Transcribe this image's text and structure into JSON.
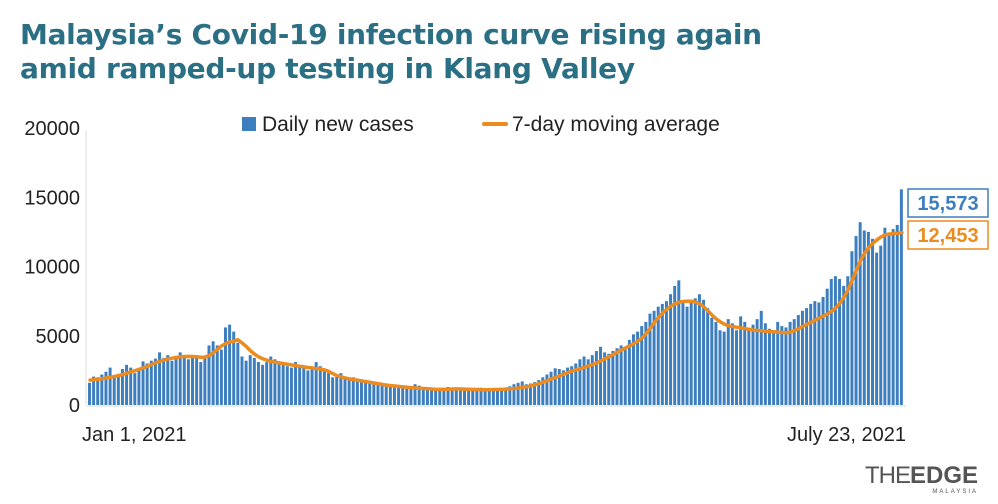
{
  "title": {
    "line1": "Malaysia’s Covid-19 infection curve rising again",
    "line2": "amid ramped-up testing in Klang Valley"
  },
  "logo": {
    "part1": "THE",
    "part2": "EDGE",
    "sub": "MALAYSIA"
  },
  "colors": {
    "bar": "#3d7ebf",
    "line": "#ec8b1f",
    "title": "#2a6f83"
  },
  "chart_data": {
    "type": "bar",
    "title": "Malaysia’s Covid-19 infection curve rising again amid ramped-up testing in Klang Valley",
    "xlabel": "",
    "ylabel": "",
    "ylim": [
      0,
      20000
    ],
    "yticks": [
      0,
      5000,
      10000,
      15000,
      20000
    ],
    "x_tick_labels": [
      "Jan 1, 2021",
      "July 23, 2021"
    ],
    "legend": {
      "placement": "top-center",
      "entries": [
        "Daily new cases",
        "7-day moving average"
      ]
    },
    "end_labels": {
      "bar": "15,573",
      "line": "12,453"
    },
    "series": [
      {
        "name": "Daily new cases",
        "type": "bar",
        "values": [
          1600,
          2050,
          2000,
          2200,
          2400,
          2700,
          2100,
          2250,
          2600,
          2900,
          2700,
          2300,
          2650,
          3150,
          3000,
          3200,
          3350,
          3800,
          3400,
          3600,
          3200,
          3500,
          3800,
          3400,
          3300,
          3500,
          3600,
          3100,
          3500,
          4300,
          4600,
          4300,
          4000,
          5600,
          5800,
          5300,
          4500,
          3500,
          3200,
          3600,
          3400,
          3100,
          2900,
          3100,
          3500,
          3300,
          3100,
          2900,
          2800,
          2700,
          3100,
          2900,
          2700,
          2500,
          2700,
          3100,
          2800,
          2600,
          2300,
          2000,
          2200,
          2300,
          2000,
          1800,
          2000,
          1900,
          1850,
          1700,
          1700,
          1550,
          1600,
          1500,
          1450,
          1400,
          1400,
          1350,
          1300,
          1250,
          1300,
          1500,
          1400,
          1300,
          1200,
          1150,
          1100,
          1150,
          1200,
          1300,
          1200,
          1150,
          1100,
          1050,
          1100,
          1150,
          1200,
          1250,
          1200,
          1150,
          1100,
          1050,
          1100,
          1200,
          1350,
          1500,
          1600,
          1700,
          1500,
          1550,
          1650,
          1800,
          2000,
          2200,
          2400,
          2650,
          2600,
          2500,
          2700,
          2800,
          3000,
          3300,
          3500,
          3300,
          3600,
          3900,
          4200,
          3800,
          3700,
          3900,
          4100,
          4300,
          4000,
          4700,
          5100,
          5300,
          5700,
          6000,
          6600,
          6800,
          7100,
          7300,
          7500,
          8000,
          8600,
          9000,
          7400,
          7100,
          7500,
          7700,
          8000,
          7600,
          7000,
          6300,
          6000,
          5400,
          5300,
          6200,
          5900,
          5400,
          6400,
          6000,
          5400,
          5800,
          6200,
          6800,
          5900,
          5500,
          5200,
          6000,
          5700,
          5600,
          6000,
          6200,
          6500,
          6800,
          7000,
          7300,
          7500,
          7400,
          7800,
          8400,
          9100,
          9300,
          9100,
          8600,
          9300,
          11100,
          12200,
          13200,
          12600,
          12500,
          12000,
          11000,
          11500,
          12800,
          12400,
          12700,
          13000,
          15573
        ]
      },
      {
        "name": "7-day moving average",
        "type": "line",
        "values": [
          1800,
          1820,
          1860,
          1900,
          1950,
          2000,
          2060,
          2120,
          2200,
          2300,
          2400,
          2480,
          2580,
          2680,
          2800,
          2920,
          3040,
          3150,
          3250,
          3330,
          3380,
          3430,
          3480,
          3500,
          3510,
          3500,
          3480,
          3450,
          3460,
          3560,
          3760,
          4000,
          4250,
          4420,
          4550,
          4600,
          4720,
          4500,
          4250,
          3950,
          3700,
          3500,
          3350,
          3250,
          3150,
          3100,
          3050,
          3000,
          2950,
          2900,
          2850,
          2800,
          2760,
          2720,
          2680,
          2640,
          2600,
          2550,
          2450,
          2300,
          2150,
          2050,
          1970,
          1900,
          1850,
          1800,
          1750,
          1700,
          1650,
          1600,
          1550,
          1500,
          1450,
          1410,
          1380,
          1350,
          1320,
          1290,
          1260,
          1240,
          1220,
          1200,
          1180,
          1160,
          1140,
          1130,
          1130,
          1140,
          1150,
          1160,
          1160,
          1150,
          1140,
          1130,
          1120,
          1110,
          1100,
          1100,
          1110,
          1120,
          1130,
          1140,
          1160,
          1180,
          1210,
          1250,
          1300,
          1350,
          1420,
          1500,
          1600,
          1700,
          1810,
          1930,
          2050,
          2170,
          2280,
          2390,
          2490,
          2580,
          2670,
          2760,
          2860,
          2970,
          3100,
          3250,
          3400,
          3560,
          3720,
          3880,
          4030,
          4180,
          4330,
          4500,
          4700,
          4950,
          5300,
          5700,
          6100,
          6450,
          6750,
          7000,
          7200,
          7350,
          7450,
          7480,
          7500,
          7480,
          7400,
          7250,
          7000,
          6700,
          6400,
          6150,
          5950,
          5800,
          5700,
          5650,
          5600,
          5550,
          5500,
          5450,
          5400,
          5380,
          5350,
          5320,
          5300,
          5280,
          5250,
          5230,
          5220,
          5280,
          5400,
          5550,
          5700,
          5850,
          6000,
          6150,
          6300,
          6450,
          6600,
          6800,
          7050,
          7400,
          7850,
          8400,
          9100,
          9800,
          10500,
          11000,
          11400,
          11700,
          11950,
          12150,
          12300,
          12350,
          12380,
          12400,
          12453
        ]
      }
    ]
  }
}
